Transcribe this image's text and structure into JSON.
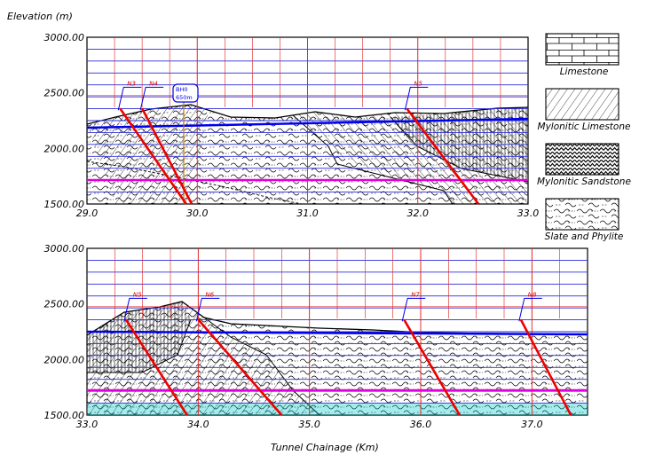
{
  "diagram": {
    "elevation_label": "Elevation  (m)",
    "x_axis_label": "Tunnel  Chainage  (Km)",
    "colors": {
      "grid_blue": "#2a2ad8",
      "grid_red": "#e02020",
      "tunnel": "#0000ee",
      "magenta_line": "#e000e0",
      "fault": "#ee0000",
      "surface": "#000000",
      "cyan_base": "#00c8c8"
    },
    "panels": [
      {
        "id": "top",
        "y_ticks": [
          "3000.00",
          "2500.00",
          "2000.00",
          "1500.00"
        ],
        "x_ticks": [
          "29.0",
          "30.0",
          "31.0",
          "32.0",
          "33.0"
        ],
        "x_range": [
          29.0,
          33.0
        ],
        "y_range": [
          1500,
          3000
        ],
        "faults": [
          {
            "label": "N3",
            "surface_x": 29.3,
            "dx": 0.6
          },
          {
            "label": "N4",
            "surface_x": 29.5,
            "dx": 0.45
          },
          {
            "label": "N5",
            "surface_x": 31.9,
            "dx": 0.65
          }
        ],
        "borehole_label": "BH0",
        "borehole_sublabel": "650m"
      },
      {
        "id": "bottom",
        "y_ticks": [
          "3000.00",
          "2500.00",
          "2000.00",
          "1500.00"
        ],
        "x_ticks": [
          "33.0",
          "34.0",
          "35.0",
          "36.0",
          "37.0"
        ],
        "x_range": [
          33.0,
          37.5
        ],
        "y_range": [
          1500,
          3000
        ],
        "faults": [
          {
            "label": "N5",
            "surface_x": 33.35,
            "dx": 0.55
          },
          {
            "label": "N6",
            "surface_x": 34.0,
            "dx": 0.75
          },
          {
            "label": "N7",
            "surface_x": 35.85,
            "dx": 0.5
          },
          {
            "label": "N8",
            "surface_x": 36.9,
            "dx": 0.45
          }
        ]
      }
    ],
    "legend": [
      {
        "label": "Limestone",
        "pattern": "brick"
      },
      {
        "label": "Mylonitic  Limestone",
        "pattern": "diagonal"
      },
      {
        "label": "Mylonitic  Sandstone",
        "pattern": "zigzag"
      },
      {
        "label": "Slate  and  Phylite",
        "pattern": "wavy"
      }
    ]
  }
}
